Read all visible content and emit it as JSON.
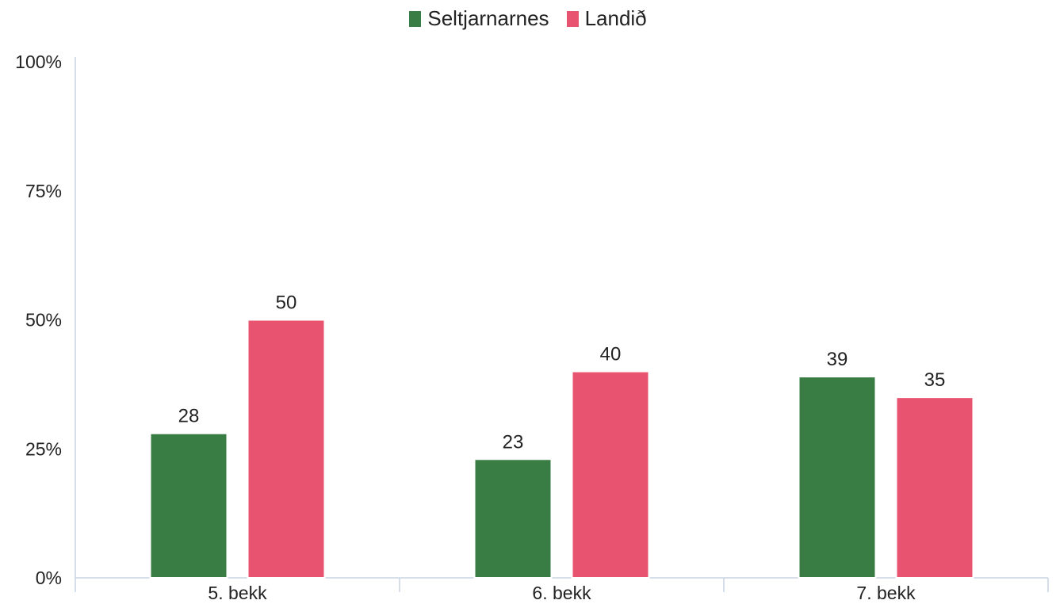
{
  "legend": {
    "items": [
      {
        "label": "Seltjarnarnes",
        "color": "#3a7d44"
      },
      {
        "label": "Landið",
        "color": "#e8546f"
      }
    ]
  },
  "chart_data": {
    "type": "bar",
    "categories": [
      "5. bekk",
      "6. bekk",
      "7. bekk"
    ],
    "series": [
      {
        "name": "Seltjarnarnes",
        "values": [
          28,
          23,
          39
        ],
        "color": "#3a7d44"
      },
      {
        "name": "Landið",
        "values": [
          50,
          40,
          35
        ],
        "color": "#e8546f"
      }
    ],
    "ylim": [
      0,
      100
    ],
    "yticks": [
      0,
      25,
      50,
      75,
      100
    ],
    "ytick_labels": [
      "0%",
      "25%",
      "50%",
      "75%",
      "100%"
    ],
    "data_labels": true,
    "grid": false,
    "legend_position": "top-center",
    "title": "",
    "xlabel": "",
    "ylabel": ""
  }
}
